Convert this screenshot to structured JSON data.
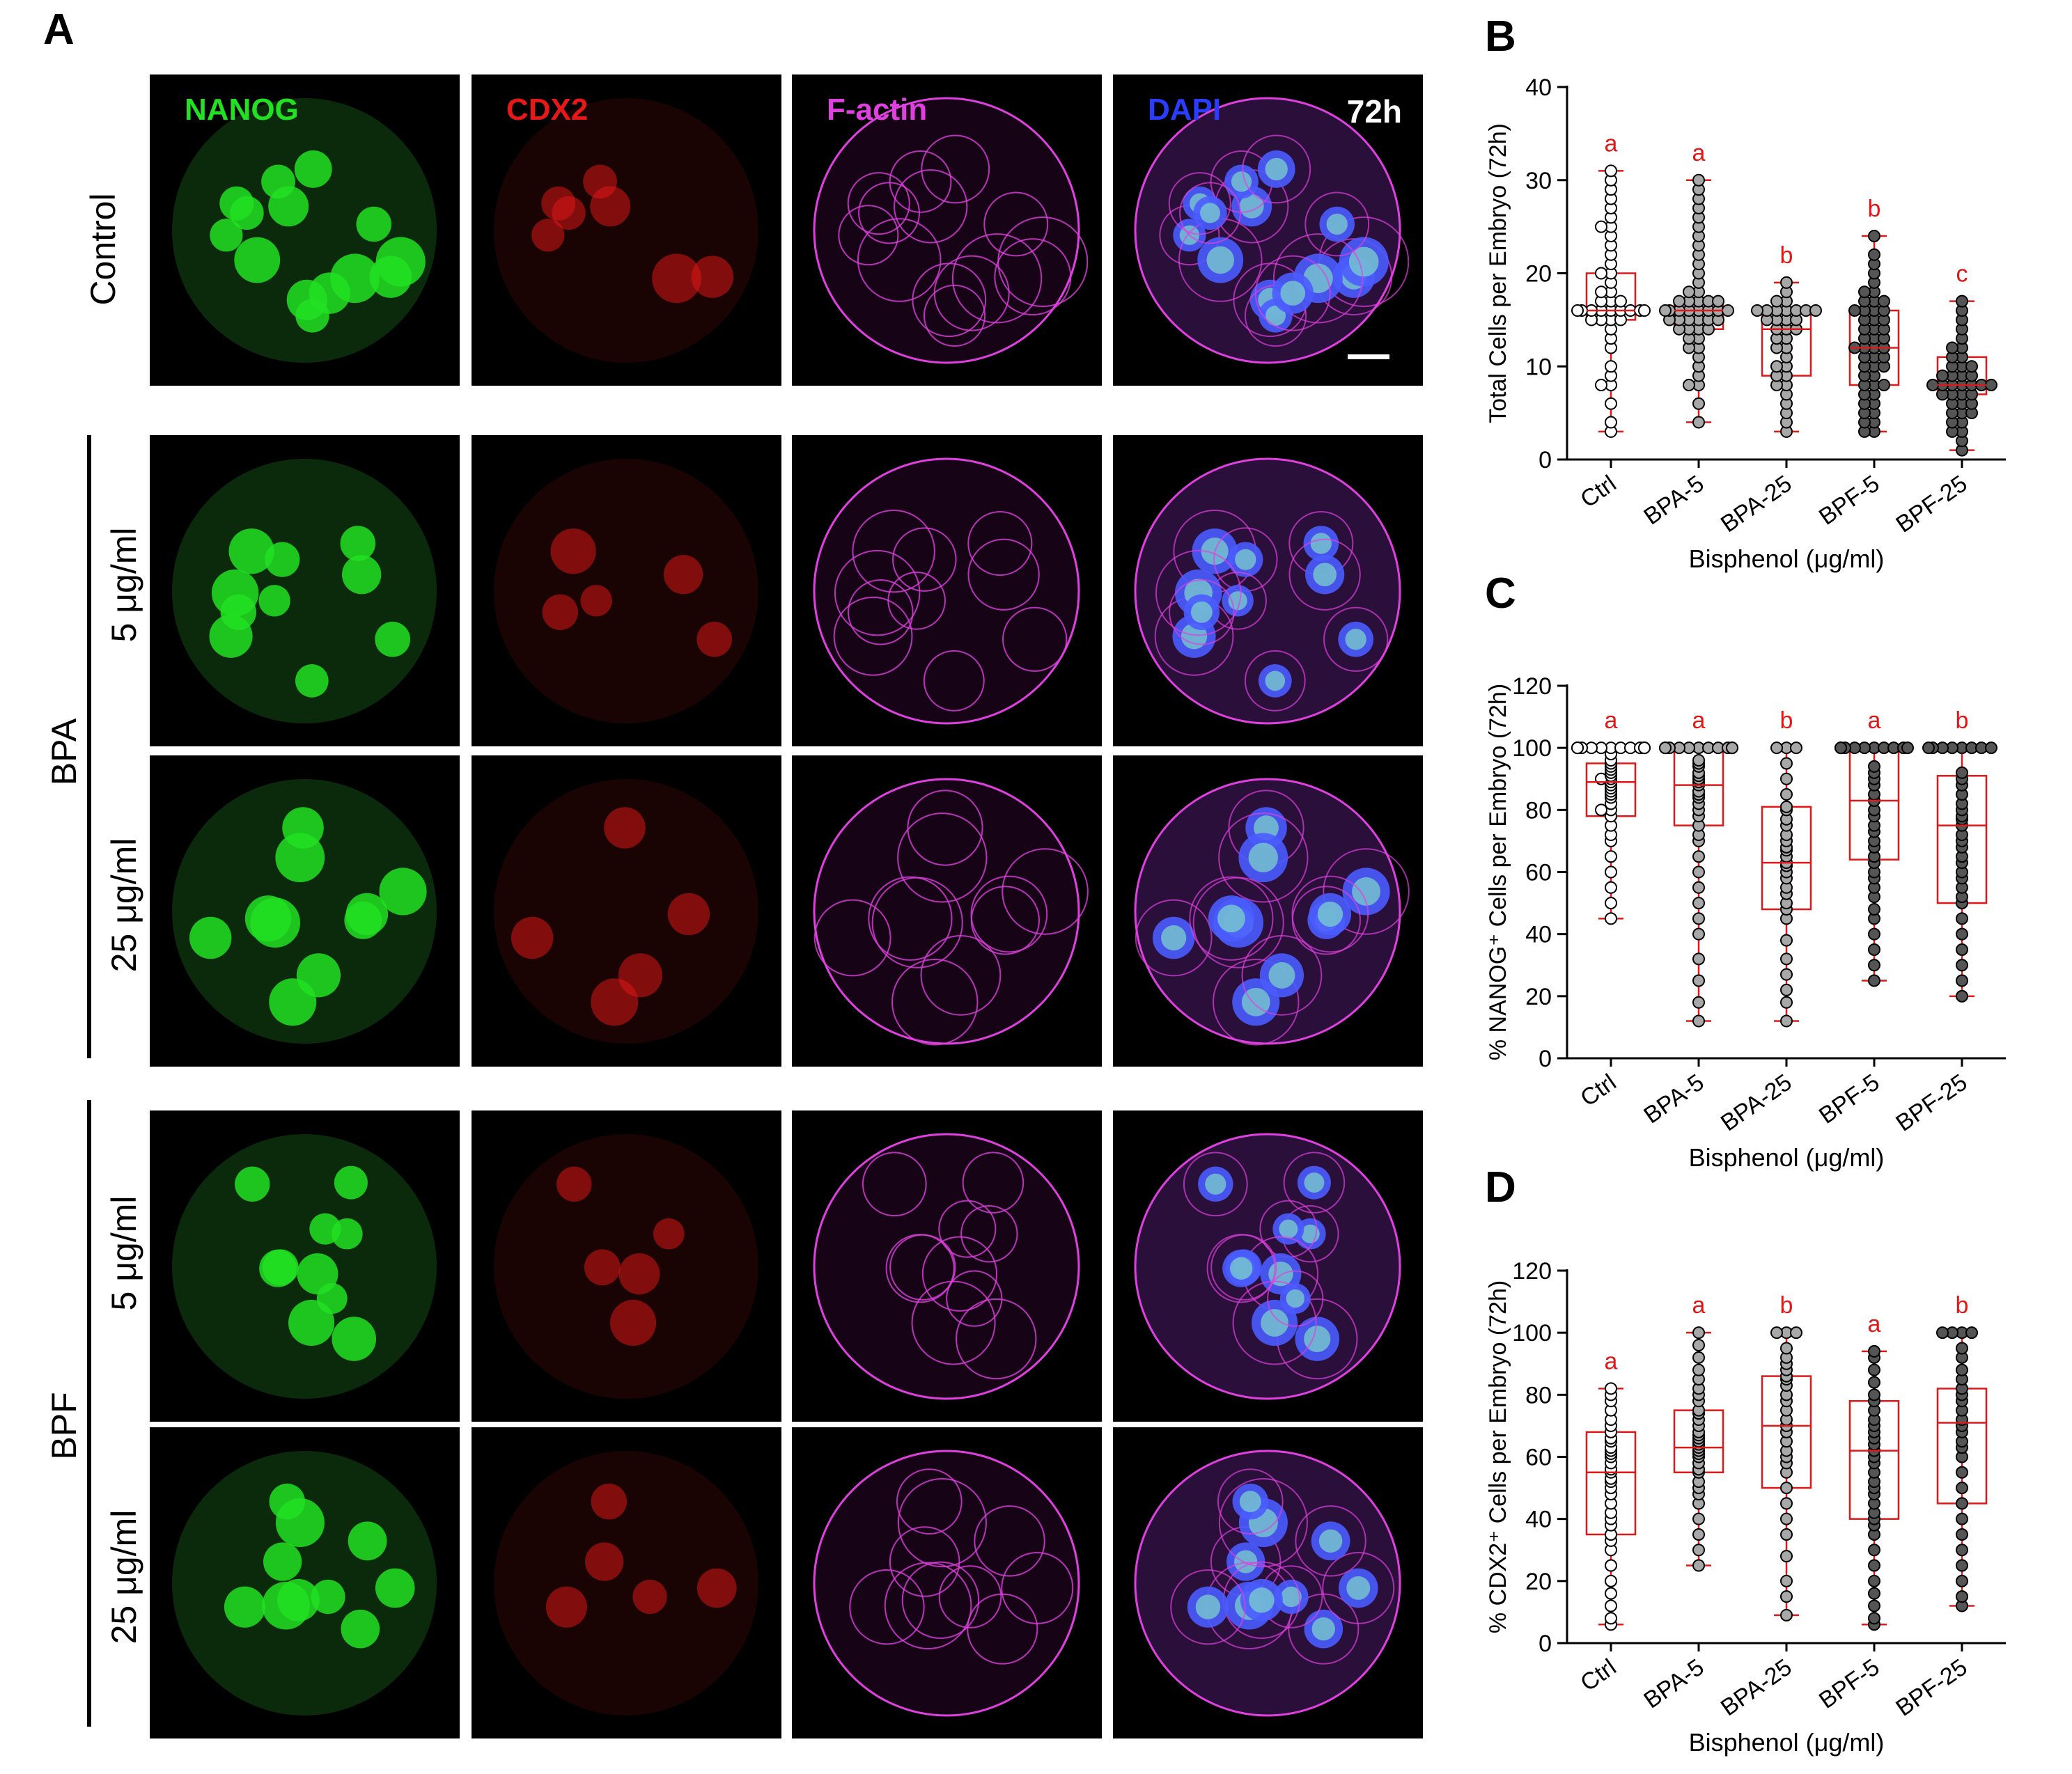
{
  "panel_labels": {
    "a": "A",
    "b": "B",
    "c": "C",
    "d": "D"
  },
  "channels": [
    {
      "label": "NANOG",
      "color": "#22e022"
    },
    {
      "label": "CDX2",
      "color": "#e81818"
    },
    {
      "label": "F-actin",
      "color": "#e040e0"
    },
    {
      "label": "DAPI",
      "color": "#2a3cff"
    }
  ],
  "timepoint": "72h",
  "groups": [
    {
      "label": "Control",
      "rows": [
        ""
      ]
    },
    {
      "label": "BPA",
      "rows": [
        "5 μg/ml",
        "25 μg/ml"
      ]
    },
    {
      "label": "BPF",
      "rows": [
        "5 μg/ml",
        "25 μg/ml"
      ]
    }
  ],
  "colors": {
    "box": "#e01818",
    "letters": "#e01818",
    "ctrl_fill": "#ffffff",
    "bpa_fill": "#a8a8a8",
    "bpf_fill": "#555555"
  },
  "chart_data": [
    {
      "type": "box",
      "panel": "B",
      "categories": [
        "Ctrl",
        "BPA-5",
        "BPA-25",
        "BPF-5",
        "BPF-25"
      ],
      "ylabel": "Total Cells per Embryo (72h)",
      "xlabel": "Bisphenol (μg/ml)",
      "ylim": [
        0,
        40
      ],
      "yticks": [
        0,
        10,
        20,
        30,
        40
      ],
      "ytick_labels": [
        "0",
        "10",
        "20",
        "30",
        "40"
      ],
      "letters": [
        "a",
        "a",
        "b",
        "b",
        "c"
      ],
      "boxes": [
        {
          "min": 3,
          "q1": 15,
          "median": 16,
          "q3": 20,
          "max": 31
        },
        {
          "min": 4,
          "q1": 14,
          "median": 16,
          "q3": 17,
          "max": 30
        },
        {
          "min": 3,
          "q1": 9,
          "median": 14,
          "q3": 16,
          "max": 19
        },
        {
          "min": 3,
          "q1": 8,
          "median": 12,
          "q3": 16,
          "max": 24
        },
        {
          "min": 1,
          "q1": 7,
          "median": 8,
          "q3": 11,
          "max": 17
        }
      ],
      "points": [
        [
          3,
          4,
          6,
          8,
          8,
          9,
          10,
          12,
          13,
          14,
          15,
          15,
          15,
          15,
          16,
          16,
          16,
          16,
          16,
          16,
          16,
          16,
          16,
          17,
          17,
          17,
          18,
          18,
          19,
          20,
          20,
          21,
          22,
          23,
          24,
          25,
          25,
          26,
          27,
          28,
          29,
          30,
          31
        ],
        [
          4,
          6,
          8,
          8,
          9,
          10,
          11,
          12,
          12,
          13,
          13,
          14,
          14,
          14,
          14,
          15,
          15,
          15,
          15,
          15,
          15,
          16,
          16,
          16,
          16,
          16,
          16,
          16,
          16,
          17,
          17,
          17,
          17,
          17,
          18,
          18,
          19,
          20,
          21,
          22,
          23,
          24,
          25,
          26,
          27,
          28,
          29,
          30
        ],
        [
          3,
          4,
          5,
          6,
          7,
          8,
          8,
          9,
          9,
          10,
          10,
          11,
          12,
          12,
          13,
          13,
          14,
          14,
          14,
          15,
          15,
          15,
          15,
          16,
          16,
          16,
          16,
          16,
          16,
          16,
          17,
          17,
          18,
          19
        ],
        [
          3,
          3,
          4,
          4,
          5,
          5,
          6,
          6,
          7,
          7,
          8,
          8,
          8,
          9,
          9,
          10,
          10,
          10,
          11,
          11,
          11,
          12,
          12,
          12,
          12,
          13,
          13,
          13,
          14,
          14,
          14,
          15,
          15,
          15,
          16,
          16,
          16,
          16,
          17,
          17,
          17,
          18,
          18,
          19,
          20,
          21,
          22,
          24
        ],
        [
          1,
          2,
          3,
          3,
          4,
          4,
          5,
          5,
          5,
          6,
          6,
          6,
          7,
          7,
          7,
          7,
          8,
          8,
          8,
          8,
          8,
          8,
          8,
          9,
          9,
          9,
          9,
          10,
          10,
          10,
          11,
          11,
          12,
          12,
          13,
          14,
          15,
          16,
          17
        ]
      ]
    },
    {
      "type": "box",
      "panel": "C",
      "categories": [
        "Ctrl",
        "BPA-5",
        "BPA-25",
        "BPF-5",
        "BPF-25"
      ],
      "ylabel": "% NANOG⁺ Cells per Embryo (72h)",
      "xlabel": "Bisphenol (μg/ml)",
      "ylim": [
        0,
        120
      ],
      "yticks": [
        0,
        20,
        40,
        60,
        80,
        100,
        120
      ],
      "ytick_labels": [
        "0",
        "20",
        "40",
        "60",
        "80",
        "100",
        "120"
      ],
      "letters": [
        "a",
        "a",
        "b",
        "a",
        "b"
      ],
      "boxes": [
        {
          "min": 45,
          "q1": 78,
          "median": 89,
          "q3": 95,
          "max": 100
        },
        {
          "min": 12,
          "q1": 75,
          "median": 88,
          "q3": 100,
          "max": 100
        },
        {
          "min": 12,
          "q1": 48,
          "median": 63,
          "q3": 81,
          "max": 100
        },
        {
          "min": 25,
          "q1": 64,
          "median": 83,
          "q3": 100,
          "max": 100
        },
        {
          "min": 20,
          "q1": 50,
          "median": 75,
          "q3": 91,
          "max": 100
        }
      ],
      "points": [
        [
          45,
          50,
          55,
          60,
          65,
          70,
          72,
          75,
          78,
          80,
          80,
          82,
          84,
          85,
          86,
          87,
          88,
          89,
          90,
          90,
          91,
          92,
          93,
          94,
          95,
          96,
          98,
          100,
          100,
          100,
          100,
          100,
          100,
          100,
          100,
          100,
          100,
          100,
          100
        ],
        [
          12,
          18,
          25,
          32,
          40,
          45,
          50,
          55,
          60,
          65,
          70,
          72,
          75,
          78,
          80,
          82,
          84,
          85,
          86,
          88,
          89,
          90,
          91,
          92,
          94,
          95,
          96,
          100,
          100,
          100,
          100,
          100,
          100,
          100,
          100,
          100,
          100,
          100
        ],
        [
          12,
          18,
          22,
          27,
          32,
          38,
          45,
          48,
          50,
          53,
          55,
          58,
          60,
          62,
          63,
          65,
          67,
          68,
          70,
          72,
          75,
          77,
          80,
          81,
          85,
          90,
          95,
          100,
          100,
          100
        ],
        [
          25,
          30,
          35,
          40,
          45,
          48,
          52,
          55,
          58,
          60,
          63,
          65,
          68,
          70,
          73,
          75,
          78,
          80,
          83,
          85,
          88,
          90,
          92,
          94,
          100,
          100,
          100,
          100,
          100,
          100,
          100,
          100,
          100,
          100
        ],
        [
          20,
          25,
          30,
          35,
          40,
          45,
          50,
          52,
          55,
          58,
          60,
          63,
          65,
          68,
          70,
          72,
          75,
          77,
          78,
          80,
          82,
          85,
          88,
          90,
          92,
          100,
          100,
          100,
          100,
          100,
          100,
          100,
          100
        ]
      ]
    },
    {
      "type": "box",
      "panel": "D",
      "categories": [
        "Ctrl",
        "BPA-5",
        "BPA-25",
        "BPF-5",
        "BPF-25"
      ],
      "ylabel": "% CDX2⁺ Cells per Embryo (72h)",
      "xlabel": "Bisphenol (μg/ml)",
      "ylim": [
        0,
        120
      ],
      "yticks": [
        0,
        20,
        40,
        60,
        80,
        100,
        120
      ],
      "ytick_labels": [
        "0",
        "20",
        "40",
        "60",
        "80",
        "100",
        "120"
      ],
      "letters": [
        "a",
        "a",
        "b",
        "a",
        "b"
      ],
      "boxes": [
        {
          "min": 6,
          "q1": 35,
          "median": 55,
          "q3": 68,
          "max": 82
        },
        {
          "min": 25,
          "q1": 55,
          "median": 63,
          "q3": 75,
          "max": 100
        },
        {
          "min": 9,
          "q1": 50,
          "median": 70,
          "q3": 86,
          "max": 100
        },
        {
          "min": 6,
          "q1": 40,
          "median": 62,
          "q3": 78,
          "max": 94
        },
        {
          "min": 12,
          "q1": 45,
          "median": 71,
          "q3": 82,
          "max": 100
        }
      ],
      "points": [
        [
          6,
          8,
          12,
          16,
          20,
          25,
          30,
          33,
          35,
          38,
          40,
          42,
          45,
          48,
          50,
          52,
          53,
          55,
          56,
          58,
          60,
          61,
          62,
          63,
          65,
          66,
          68,
          70,
          72,
          75,
          78,
          80,
          82
        ],
        [
          25,
          30,
          35,
          40,
          45,
          48,
          50,
          52,
          55,
          56,
          58,
          60,
          61,
          62,
          63,
          64,
          65,
          66,
          67,
          68,
          70,
          72,
          74,
          75,
          78,
          80,
          82,
          85,
          88,
          92,
          96,
          100
        ],
        [
          9,
          15,
          20,
          28,
          35,
          40,
          45,
          50,
          55,
          58,
          60,
          62,
          65,
          68,
          70,
          72,
          75,
          78,
          80,
          83,
          85,
          86,
          88,
          90,
          92,
          95,
          100,
          100,
          100
        ],
        [
          6,
          8,
          12,
          16,
          20,
          25,
          30,
          35,
          38,
          40,
          42,
          45,
          48,
          50,
          52,
          55,
          58,
          60,
          62,
          64,
          66,
          68,
          70,
          72,
          75,
          78,
          80,
          84,
          88,
          92,
          94
        ],
        [
          12,
          15,
          20,
          25,
          30,
          35,
          40,
          45,
          50,
          55,
          60,
          63,
          65,
          68,
          70,
          72,
          75,
          78,
          80,
          82,
          85,
          88,
          92,
          95,
          100,
          100,
          100,
          100
        ]
      ]
    }
  ]
}
